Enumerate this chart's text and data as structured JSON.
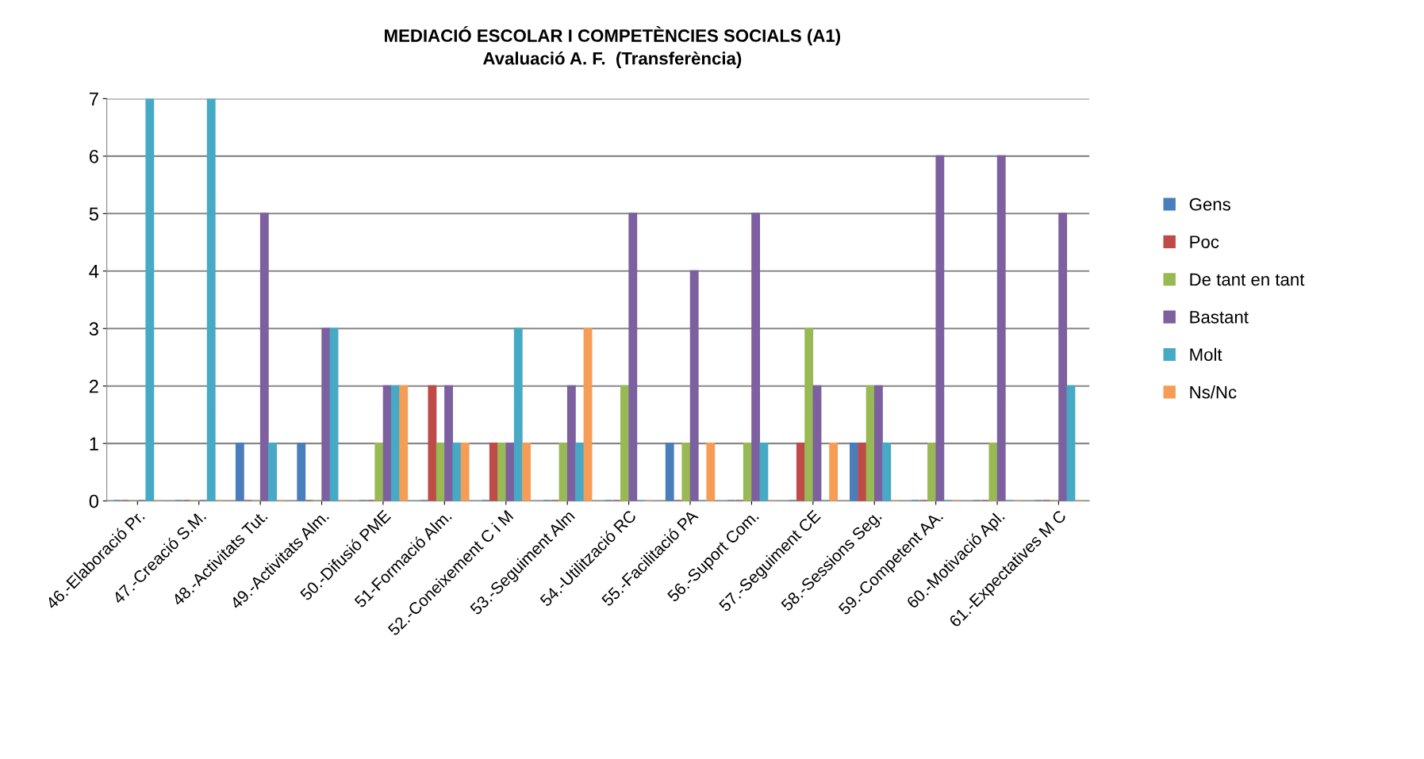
{
  "chart_data": {
    "type": "bar",
    "title": "MEDIACIÓ ESCOLAR I COMPETÈNCIES SOCIALS (A1)",
    "subtitle": "Avaluació A. F.  (Transferència)",
    "categories": [
      "46.-Elaboració Pr.",
      "47.-Creació S.M.",
      "48.-Activitats Tut.",
      "49.-Activitats Alm.",
      "50.-Difusió PME",
      "51-Formació Alm.",
      "52.-Coneixement C i M",
      "53.-Seguiment Alm",
      "54.-Utilització RC",
      "55.-Facilitació PA",
      "56.-Suport Com.",
      "57.-Seguiment CE",
      "58.-Sessions Seg.",
      "59.-Competent AA.",
      "60.-Motivació Apl.",
      "61.-Expectatives M C"
    ],
    "series": [
      {
        "name": "Gens",
        "color": "#4a7ebb",
        "values": [
          0,
          0,
          1,
          1,
          0,
          0,
          0,
          0,
          0,
          1,
          0,
          0,
          1,
          0,
          0,
          0
        ]
      },
      {
        "name": "Poc",
        "color": "#be4b48",
        "values": [
          0,
          0,
          0,
          0,
          0,
          2,
          1,
          0,
          0,
          0,
          0,
          1,
          1,
          0,
          0,
          0
        ]
      },
      {
        "name": "De tant en tant",
        "color": "#98b954",
        "values": [
          0,
          0,
          0,
          0,
          1,
          1,
          1,
          1,
          2,
          1,
          1,
          3,
          2,
          1,
          1,
          0
        ]
      },
      {
        "name": "Bastant",
        "color": "#7d60a0",
        "values": [
          0,
          0,
          5,
          3,
          2,
          2,
          1,
          2,
          5,
          4,
          5,
          2,
          2,
          6,
          6,
          5
        ]
      },
      {
        "name": "Molt",
        "color": "#46aac5",
        "values": [
          7,
          7,
          1,
          3,
          2,
          1,
          3,
          1,
          0,
          0,
          1,
          0,
          1,
          0,
          0,
          2
        ]
      },
      {
        "name": "Ns/Nc",
        "color": "#f59d56",
        "values": [
          0,
          0,
          0,
          0,
          2,
          1,
          1,
          3,
          0,
          1,
          0,
          1,
          0,
          0,
          0,
          0
        ]
      }
    ],
    "ylim": [
      0,
      7
    ],
    "yticks": [
      0,
      1,
      2,
      3,
      4,
      5,
      6,
      7
    ],
    "grid": "y",
    "legend": "right"
  }
}
